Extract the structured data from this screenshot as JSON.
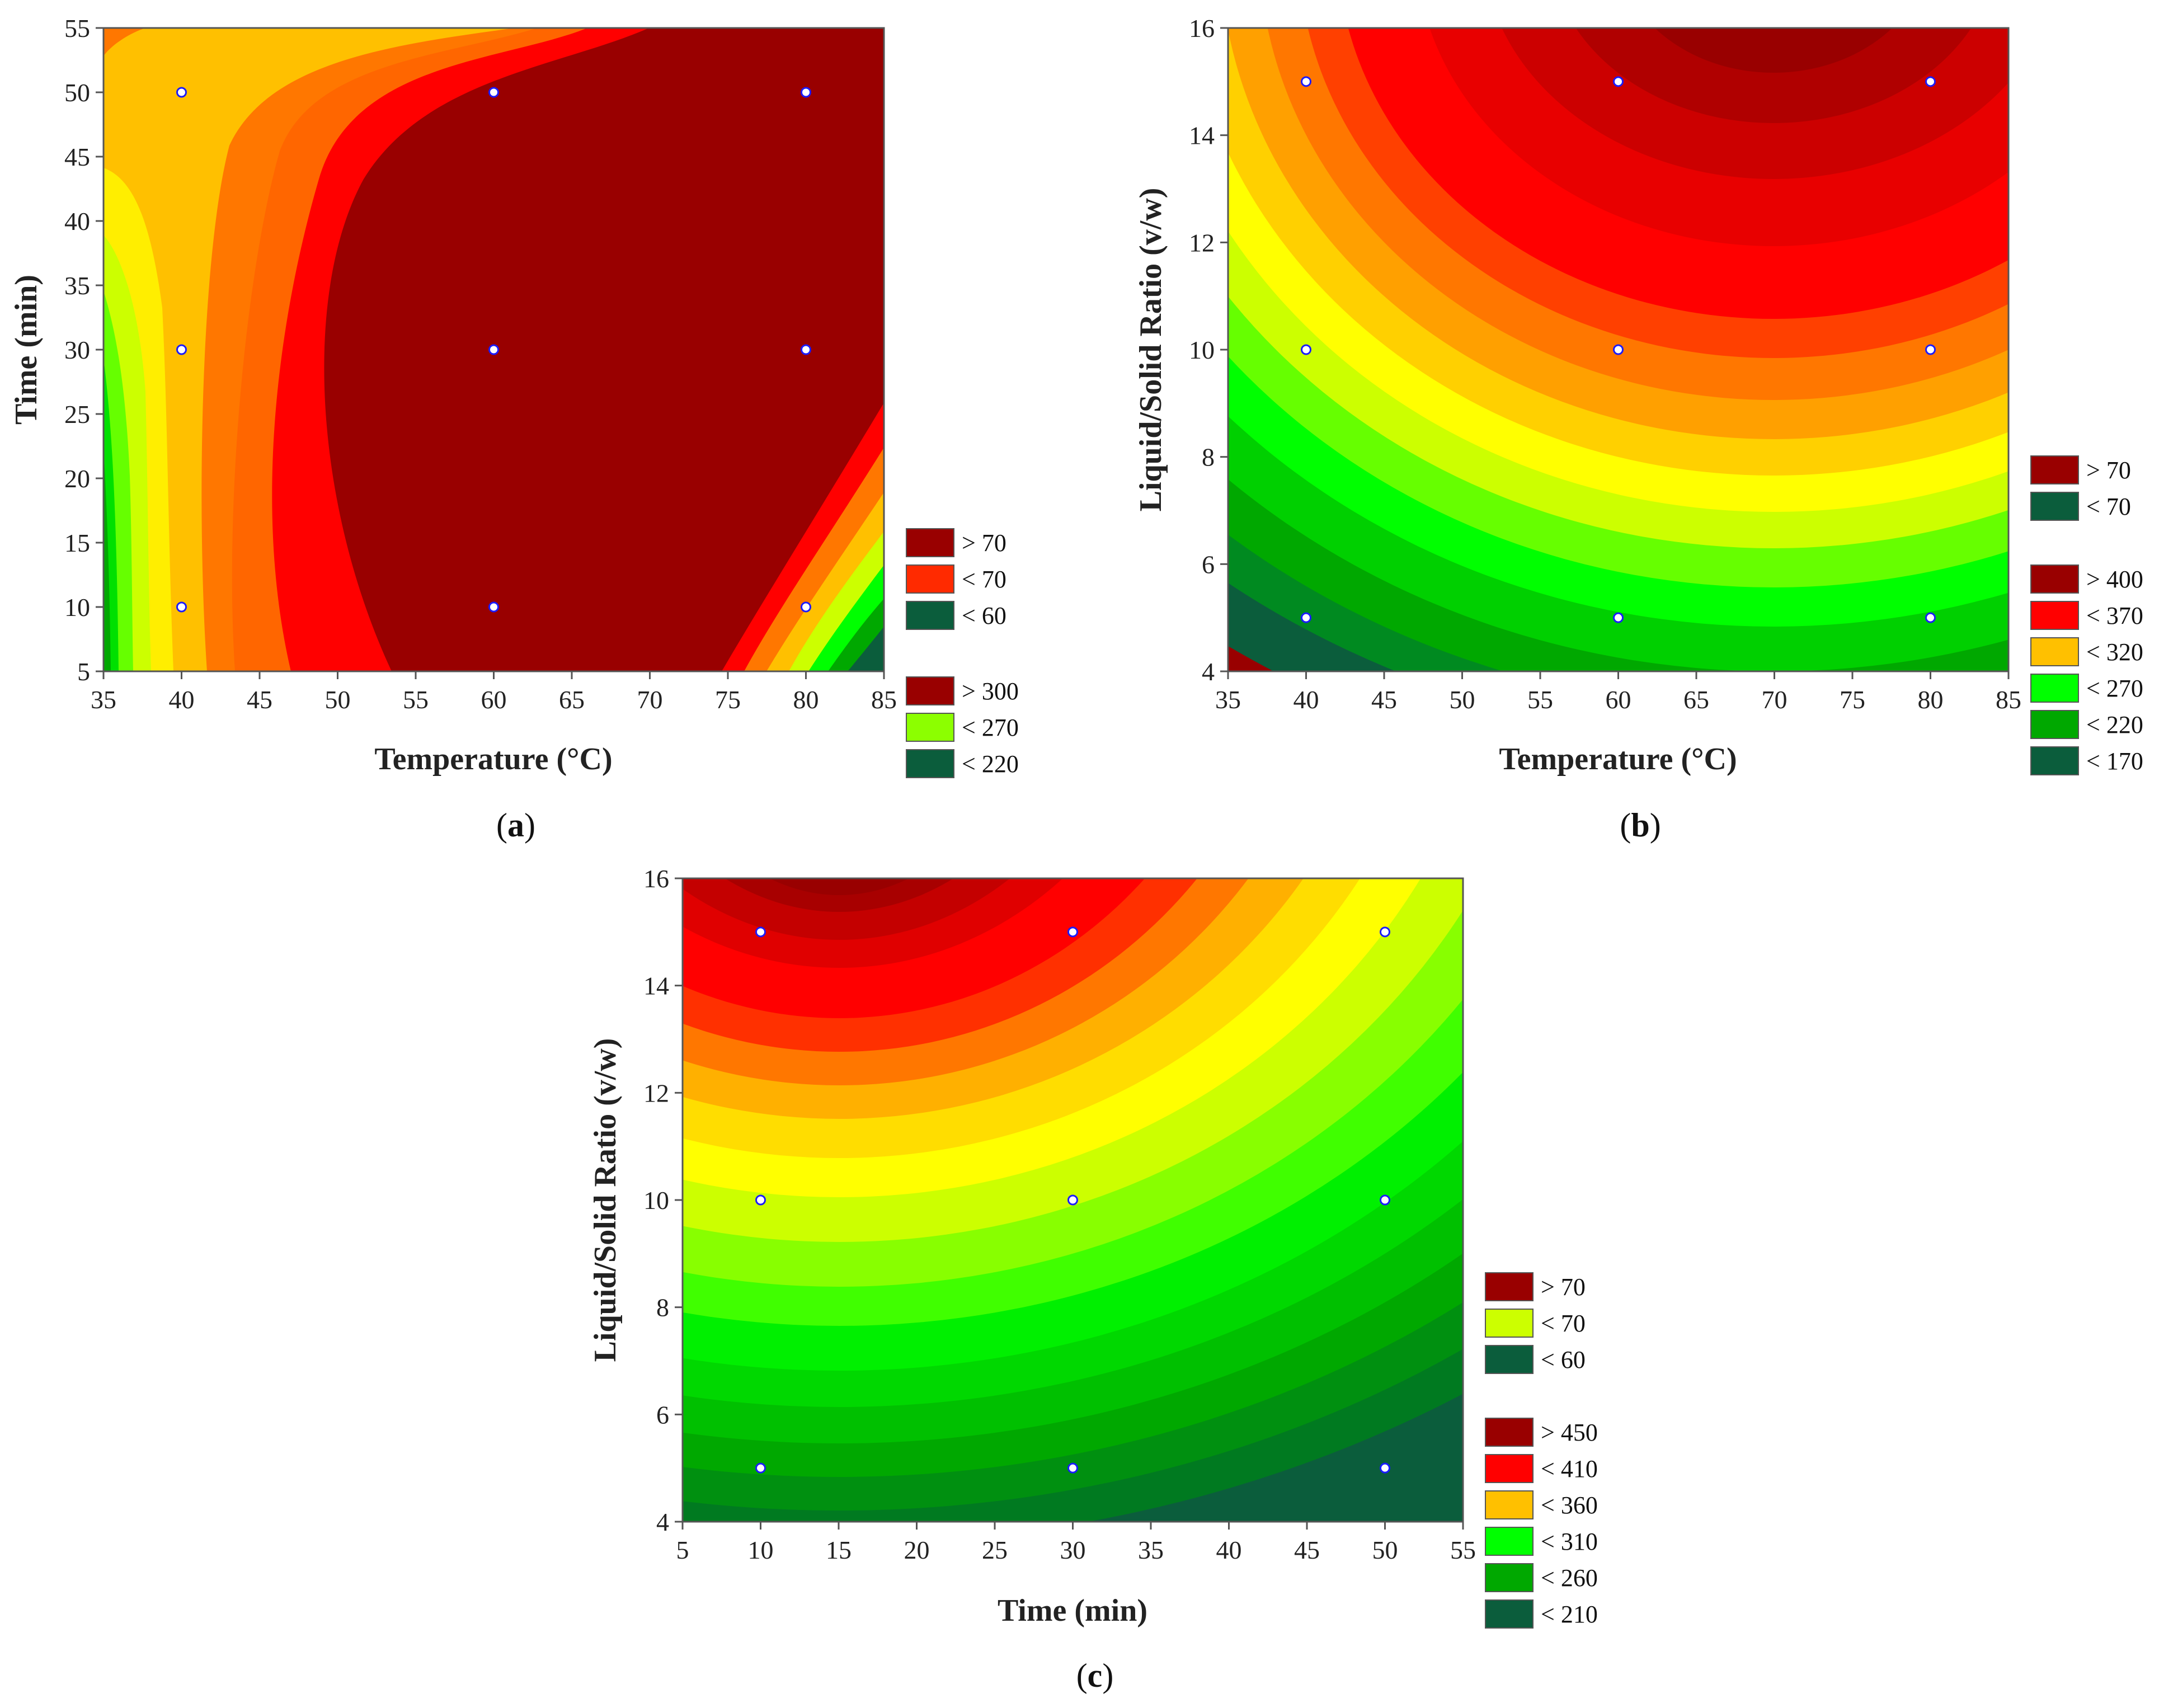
{
  "chart_data": [
    {
      "type": "heatmap",
      "subtype": "contour",
      "panel_label": "a",
      "xlabel": "Temperature (°C)",
      "ylabel": "Time (min)",
      "xlim": [
        35,
        85
      ],
      "ylim": [
        5,
        55
      ],
      "xticks": [
        35,
        40,
        45,
        50,
        55,
        60,
        65,
        70,
        75,
        80,
        85
      ],
      "yticks": [
        5,
        10,
        15,
        20,
        25,
        30,
        35,
        40,
        45,
        50,
        55
      ],
      "legend_upper": [
        {
          "label": "> 70",
          "color": "#990000"
        },
        {
          "label": "< 70",
          "color": "#ff2a00"
        },
        {
          "label": "< 60",
          "color": "#0b5d3c"
        }
      ],
      "legend_lower": [
        {
          "label": "> 300",
          "color": "#990000"
        },
        {
          "label": "< 270",
          "color": "#8cff00"
        },
        {
          "label": "< 220",
          "color": "#0b5d3c"
        }
      ],
      "design_points": [
        {
          "x": 40,
          "y": 10
        },
        {
          "x": 40,
          "y": 30
        },
        {
          "x": 40,
          "y": 50
        },
        {
          "x": 60,
          "y": 10
        },
        {
          "x": 60,
          "y": 30
        },
        {
          "x": 60,
          "y": 50
        },
        {
          "x": 80,
          "y": 10
        },
        {
          "x": 80,
          "y": 30
        },
        {
          "x": 80,
          "y": 50
        }
      ]
    },
    {
      "type": "heatmap",
      "subtype": "contour",
      "panel_label": "b",
      "xlabel": "Temperature (°C)",
      "ylabel": "Liquid/Solid Ratio (v/w)",
      "xlim": [
        35,
        85
      ],
      "ylim": [
        4,
        16
      ],
      "xticks": [
        35,
        40,
        45,
        50,
        55,
        60,
        65,
        70,
        75,
        80,
        85
      ],
      "yticks": [
        4,
        6,
        8,
        10,
        12,
        14,
        16
      ],
      "legend_upper": [
        {
          "label": "> 70",
          "color": "#990000"
        },
        {
          "label": "< 70",
          "color": "#0b5d3c"
        }
      ],
      "legend_lower": [
        {
          "label": "> 400",
          "color": "#990000"
        },
        {
          "label": "< 370",
          "color": "#ff0000"
        },
        {
          "label": "< 320",
          "color": "#ffc000"
        },
        {
          "label": "< 270",
          "color": "#00ff00"
        },
        {
          "label": "< 220",
          "color": "#00a800"
        },
        {
          "label": "< 170",
          "color": "#0b5d3c"
        }
      ],
      "design_points": [
        {
          "x": 40,
          "y": 5
        },
        {
          "x": 40,
          "y": 10
        },
        {
          "x": 40,
          "y": 15
        },
        {
          "x": 60,
          "y": 5
        },
        {
          "x": 60,
          "y": 10
        },
        {
          "x": 60,
          "y": 15
        },
        {
          "x": 80,
          "y": 5
        },
        {
          "x": 80,
          "y": 10
        },
        {
          "x": 80,
          "y": 15
        }
      ]
    },
    {
      "type": "heatmap",
      "subtype": "contour",
      "panel_label": "c",
      "xlabel": "Time (min)",
      "ylabel": "Liquid/Solid Ratio (v/w)",
      "xlim": [
        5,
        55
      ],
      "ylim": [
        4,
        16
      ],
      "xticks": [
        5,
        10,
        15,
        20,
        25,
        30,
        35,
        40,
        45,
        50,
        55
      ],
      "yticks": [
        4,
        6,
        8,
        10,
        12,
        14,
        16
      ],
      "legend_upper": [
        {
          "label": "> 70",
          "color": "#990000"
        },
        {
          "label": "< 70",
          "color": "#ccff00"
        },
        {
          "label": "< 60",
          "color": "#0b5d3c"
        }
      ],
      "legend_lower": [
        {
          "label": "> 450",
          "color": "#990000"
        },
        {
          "label": "< 410",
          "color": "#ff0000"
        },
        {
          "label": "< 360",
          "color": "#ffc000"
        },
        {
          "label": "< 310",
          "color": "#00ff00"
        },
        {
          "label": "< 260",
          "color": "#00a800"
        },
        {
          "label": "< 210",
          "color": "#0b5d3c"
        }
      ],
      "design_points": [
        {
          "x": 10,
          "y": 5
        },
        {
          "x": 10,
          "y": 10
        },
        {
          "x": 10,
          "y": 15
        },
        {
          "x": 30,
          "y": 5
        },
        {
          "x": 30,
          "y": 10
        },
        {
          "x": 30,
          "y": 15
        },
        {
          "x": 50,
          "y": 5
        },
        {
          "x": 50,
          "y": 10
        },
        {
          "x": 50,
          "y": 15
        }
      ]
    }
  ]
}
